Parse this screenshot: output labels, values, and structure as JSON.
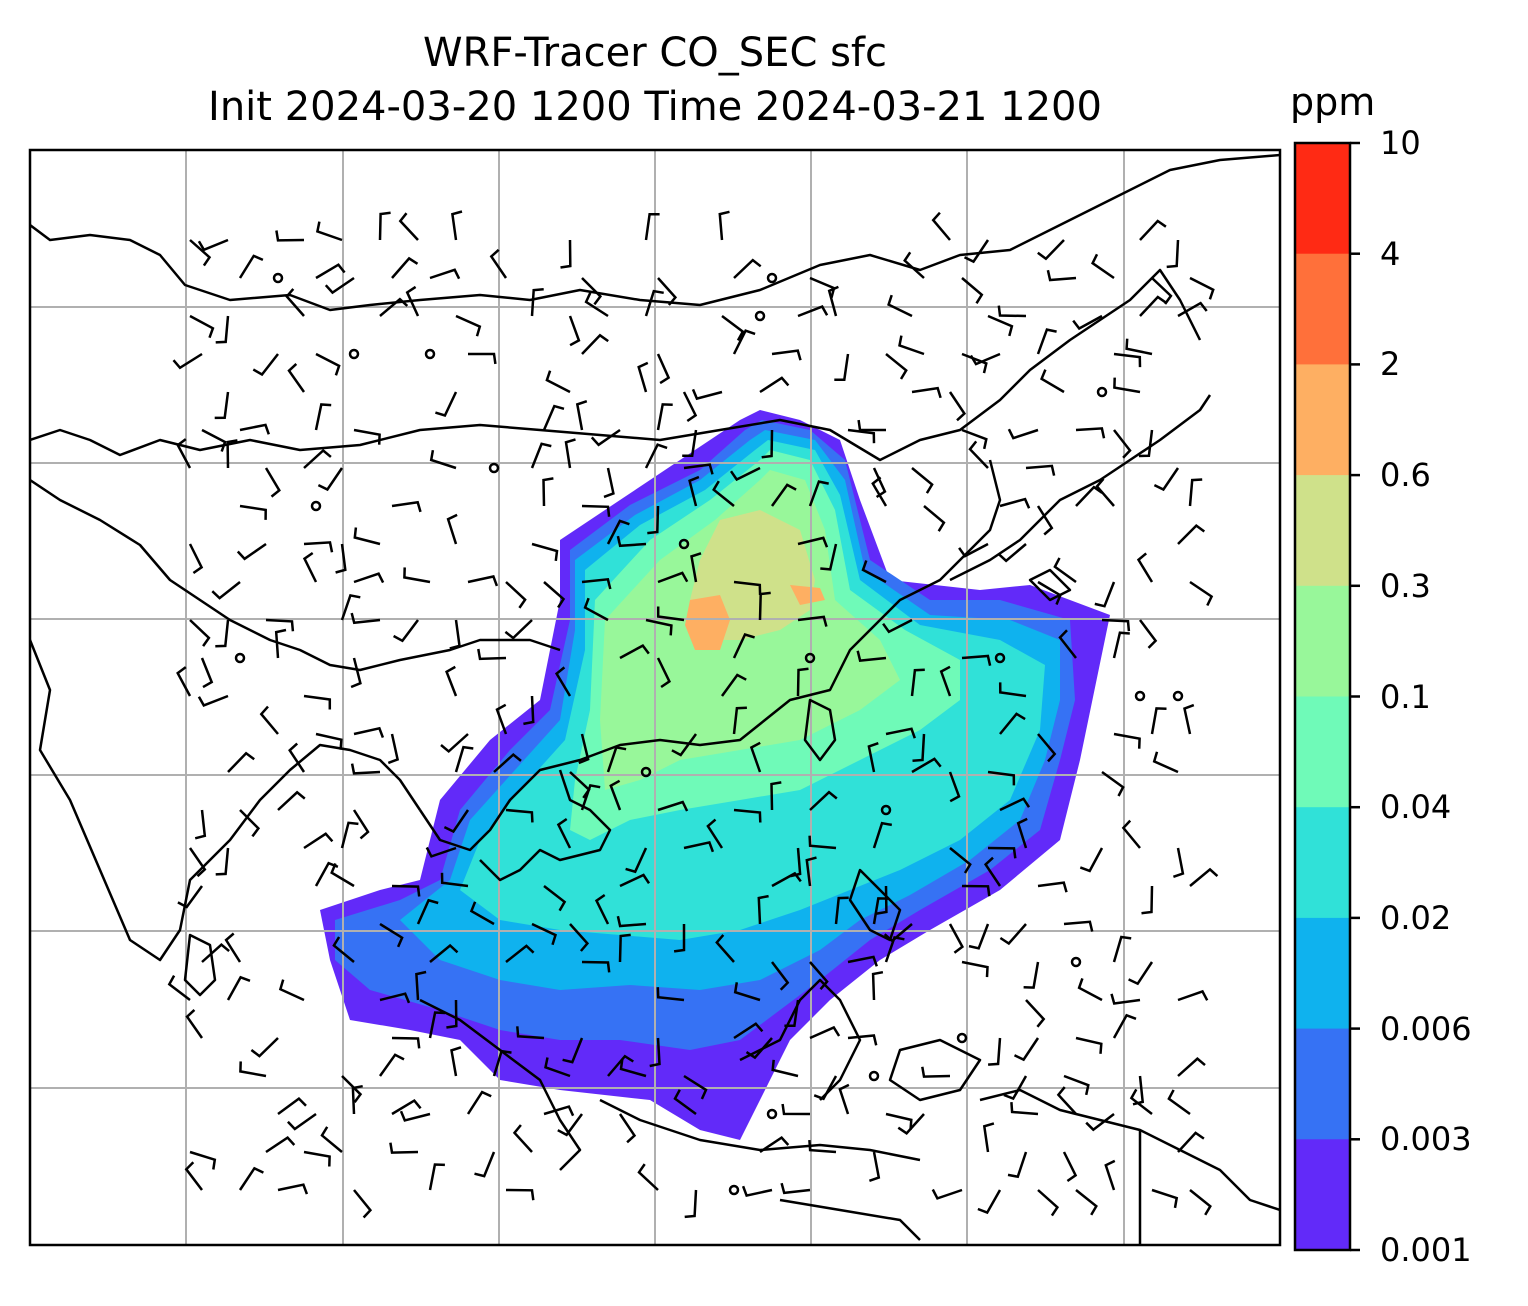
{
  "title": {
    "line1": "WRF-Tracer CO_SEC sfc",
    "line2": "Init 2024-03-20 1200 Time 2024-03-21 1200"
  },
  "colorbar": {
    "unit": "ppm",
    "levels": [
      {
        "value": "10",
        "color": "#ff2a14"
      },
      {
        "value": "4",
        "color": "#ff703a"
      },
      {
        "value": "2",
        "color": "#feaf62"
      },
      {
        "value": "0.6",
        "color": "#cfe18a"
      },
      {
        "value": "0.3",
        "color": "#98f79a"
      },
      {
        "value": "0.1",
        "color": "#6ffab8"
      },
      {
        "value": "0.04",
        "color": "#30e1d8"
      },
      {
        "value": "0.02",
        "color": "#0fb2ee"
      },
      {
        "value": "0.006",
        "color": "#3672f4"
      },
      {
        "value": "0.003",
        "color": "#622af9"
      },
      {
        "value": "0.001",
        "color": "#622af9"
      }
    ]
  },
  "map": {
    "field": "CO_SEC surface tracer concentration",
    "gridlines": true,
    "overlay": "wind barbs",
    "coastline_color": "#000000",
    "grid_color": "#b0b0b0"
  }
}
